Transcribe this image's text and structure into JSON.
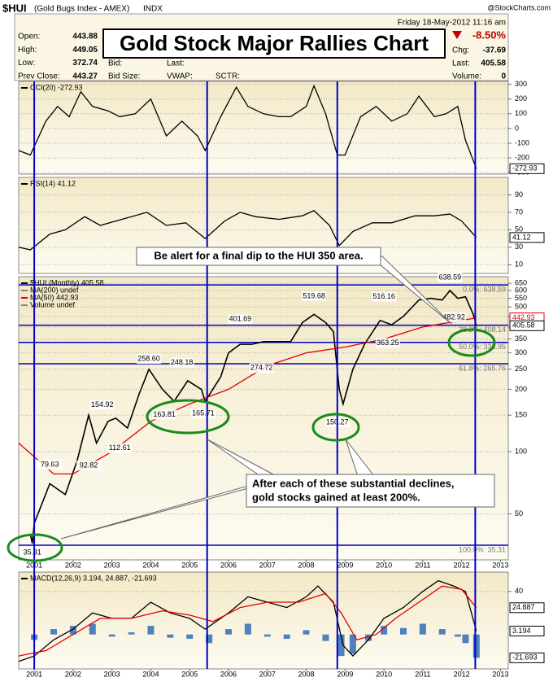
{
  "header": {
    "symbol": "$HUI",
    "name": "(Gold Bugs Index - AMEX)",
    "exchange": "INDX",
    "date": "Friday  18-May-2012  11:16 am",
    "source": "@StockCharts.com"
  },
  "banner": "Gold Stock Major Rallies Chart",
  "info": {
    "rows": [
      {
        "label": "Open:",
        "value": 443.88
      },
      {
        "label": "High:",
        "value": 449.05
      },
      {
        "label": "Low:",
        "value": 372.74
      },
      {
        "label": "Prev Close:",
        "value": 443.27
      }
    ],
    "fields": [
      "Bid:",
      "Last:",
      "Bid Size:",
      "VWAP:",
      "SCTR:"
    ],
    "percent": "-8.50%",
    "chg_label": "Chg:",
    "chg": -37.69,
    "last_label": "Last:",
    "last": 405.58,
    "volume_label": "Volume:",
    "volume": 0
  },
  "callouts": {
    "top": "Be alert for a final dip to the HUI 350 area.",
    "bottom": [
      "After each of these substantial declines,",
      "gold stocks gained at least 200%."
    ]
  },
  "vertical_lines": [
    2001.0,
    2005.45,
    2008.8,
    2012.35
  ],
  "chart_data": [
    {
      "type": "line",
      "panel": "cci",
      "xlim": [
        2000.6,
        2013.2
      ],
      "ylim": [
        -310,
        320
      ],
      "yticks": [
        300,
        200,
        100,
        0,
        -100,
        -200,
        -300
      ],
      "grid": true,
      "series": [
        {
          "name": "CCI(20) -272.93",
          "color": "#000000",
          "x": [
            2000.6,
            2000.9,
            2001.3,
            2001.6,
            2001.9,
            2002.2,
            2002.5,
            2002.9,
            2003.2,
            2003.6,
            2004.0,
            2004.4,
            2004.8,
            2005.2,
            2005.4,
            2005.8,
            2006.2,
            2006.5,
            2006.9,
            2007.3,
            2007.6,
            2008.0,
            2008.2,
            2008.5,
            2008.8,
            2009.0,
            2009.4,
            2009.8,
            2010.2,
            2010.6,
            2010.9,
            2011.3,
            2011.6,
            2011.9,
            2012.1,
            2012.38
          ],
          "values": [
            -150,
            -180,
            50,
            150,
            80,
            250,
            150,
            120,
            80,
            100,
            200,
            -50,
            50,
            -50,
            -150,
            80,
            280,
            150,
            100,
            80,
            80,
            150,
            290,
            100,
            -180,
            -180,
            80,
            150,
            50,
            100,
            220,
            80,
            100,
            150,
            -80,
            -272.93
          ]
        }
      ],
      "last_labels": [
        -272.93
      ]
    },
    {
      "type": "line",
      "panel": "rsi",
      "xlim": [
        2000.6,
        2013.2
      ],
      "ylim": [
        0,
        110
      ],
      "yticks": [
        90,
        70,
        50,
        30,
        10
      ],
      "grid": true,
      "series": [
        {
          "name": "RSI(14) 41.12",
          "color": "#000000",
          "x": [
            2000.6,
            2000.9,
            2001.4,
            2001.8,
            2002.3,
            2002.7,
            2003.1,
            2003.9,
            2004.4,
            2004.9,
            2005.4,
            2005.9,
            2006.3,
            2006.7,
            2007.3,
            2007.9,
            2008.2,
            2008.6,
            2008.85,
            2009.2,
            2009.7,
            2010.2,
            2010.8,
            2011.3,
            2011.7,
            2012.0,
            2012.38
          ],
          "values": [
            30,
            27,
            45,
            50,
            65,
            55,
            60,
            70,
            55,
            58,
            40,
            60,
            70,
            65,
            62,
            66,
            72,
            55,
            32,
            48,
            58,
            58,
            66,
            66,
            68,
            60,
            41.12
          ]
        }
      ],
      "last_labels": [
        41.12
      ]
    },
    {
      "type": "line",
      "panel": "price",
      "log_scale": true,
      "xlim": [
        2000.6,
        2013.2
      ],
      "ylim": [
        30,
        700
      ],
      "yticks": [
        50,
        100,
        150,
        200,
        250,
        300,
        350,
        400,
        450,
        500,
        550,
        600,
        650
      ],
      "xticks": [
        2001,
        2002,
        2003,
        2004,
        2005,
        2006,
        2007,
        2008,
        2009,
        2010,
        2011,
        2012,
        2013
      ],
      "grid": true,
      "series": [
        {
          "name": "$HUI (Monthly) 405.58",
          "color": "#000000",
          "x": [
            2000.9,
            2000.95,
            2001.0,
            2001.4,
            2001.8,
            2002.1,
            2002.4,
            2002.6,
            2002.9,
            2003.1,
            2003.4,
            2003.7,
            2003.95,
            2004.3,
            2004.6,
            2004.95,
            2005.3,
            2005.4,
            2005.8,
            2006.0,
            2006.3,
            2006.6,
            2006.9,
            2007.3,
            2007.6,
            2007.9,
            2008.2,
            2008.5,
            2008.7,
            2008.85,
            2008.95,
            2009.2,
            2009.5,
            2009.9,
            2010.2,
            2010.5,
            2010.9,
            2011.2,
            2011.5,
            2011.7,
            2011.9,
            2012.1,
            2012.3,
            2012.38
          ],
          "values": [
            40,
            36,
            45,
            70,
            62,
            90,
            150,
            110,
            140,
            145,
            130,
            190,
            250,
            200,
            175,
            220,
            200,
            175,
            230,
            300,
            330,
            330,
            340,
            340,
            340,
            420,
            460,
            420,
            380,
            200,
            170,
            250,
            330,
            430,
            410,
            450,
            540,
            550,
            540,
            600,
            550,
            560,
            460,
            405.58
          ]
        },
        {
          "name": "MA(50) 442.93",
          "color": "#e00000",
          "x": [
            2000.6,
            2001.5,
            2002.0,
            2003.0,
            2004.0,
            2005.0,
            2006.0,
            2007.0,
            2008.0,
            2009.0,
            2010.0,
            2011.0,
            2012.38
          ],
          "values": [
            110,
            78,
            78,
            100,
            140,
            170,
            200,
            260,
            300,
            320,
            350,
            400,
            442.93
          ]
        }
      ],
      "extra_legend": [
        "MA(200) undef",
        "Volume undef"
      ],
      "levels": [
        {
          "value": 638.59,
          "label": "0.0%: 638.59"
        },
        {
          "value": 408.14,
          "label": "38.2%: 408.14"
        },
        {
          "value": 336.95,
          "label": "50.0%: 336.95"
        },
        {
          "value": 265.76,
          "label": "61.8%: 265.76"
        },
        {
          "value": 35.31,
          "label": "100.0%: 35.31"
        }
      ],
      "point_labels": [
        {
          "x": 2001.4,
          "value": 79.63,
          "label": "79.63",
          "position": "above"
        },
        {
          "x": 2002.4,
          "value": 92.82,
          "label": "92.82",
          "position": "below"
        },
        {
          "x": 2002.75,
          "value": 154.92,
          "label": "154.92",
          "position": "above"
        },
        {
          "x": 2003.2,
          "value": 112.61,
          "label": "112.61",
          "position": "below"
        },
        {
          "x": 2003.95,
          "value": 258.6,
          "label": "258.60",
          "position": "above"
        },
        {
          "x": 2004.35,
          "value": 163.81,
          "label": "163.81",
          "position": "below"
        },
        {
          "x": 2004.8,
          "value": 248.18,
          "label": "248.18",
          "position": "above"
        },
        {
          "x": 2005.35,
          "value": 165.71,
          "label": "165.71",
          "position": "below"
        },
        {
          "x": 2006.3,
          "value": 401.69,
          "label": "401.69",
          "position": "above"
        },
        {
          "x": 2006.85,
          "value": 274.72,
          "label": "274.72",
          "position": "below"
        },
        {
          "x": 2008.2,
          "value": 519.68,
          "label": "519.68",
          "position": "above"
        },
        {
          "x": 2008.8,
          "value": 150.27,
          "label": "150.27",
          "position": "below"
        },
        {
          "x": 2010.0,
          "value": 516.16,
          "label": "516.16",
          "position": "above"
        },
        {
          "x": 2010.1,
          "value": 363.25,
          "label": "363.25",
          "position": "below"
        },
        {
          "x": 2011.7,
          "value": 638.59,
          "label": "638.59",
          "position": "above"
        },
        {
          "x": 2011.8,
          "value": 482.92,
          "label": "482.92",
          "position": "below"
        },
        {
          "x": 2000.95,
          "value": 35.31,
          "label": "35.31",
          "position": "below"
        }
      ],
      "last_labels": [
        442.93,
        405.58
      ],
      "last_colors": [
        "#e00000",
        "#000000"
      ]
    },
    {
      "type": "line",
      "panel": "macd",
      "label": "MACD(12,26,9) 3.194, 24.887, -21.693",
      "xlim": [
        2000.6,
        2013.2
      ],
      "ylim": [
        -32,
        58
      ],
      "yticks": [
        40
      ],
      "xticks": [
        2001,
        2002,
        2003,
        2004,
        2005,
        2006,
        2007,
        2008,
        2009,
        2010,
        2011,
        2012,
        2013
      ],
      "grid": true,
      "series": [
        {
          "color": "#4f81bd",
          "style": "bar",
          "x": [
            2001.0,
            2001.5,
            2002.0,
            2002.5,
            2003.0,
            2003.5,
            2004.0,
            2004.5,
            2005.0,
            2005.5,
            2006.0,
            2006.5,
            2007.0,
            2007.5,
            2008.0,
            2008.5,
            2008.9,
            2009.2,
            2009.6,
            2010.0,
            2010.5,
            2011.0,
            2011.5,
            2011.9,
            2012.1,
            2012.38
          ],
          "values": [
            -5,
            5,
            8,
            10,
            -2,
            2,
            8,
            -3,
            -4,
            -8,
            5,
            10,
            -2,
            -4,
            4,
            -6,
            -20,
            -18,
            -6,
            8,
            6,
            10,
            5,
            -2,
            -8,
            -21.693
          ]
        },
        {
          "color": "#000000",
          "x": [
            2000.6,
            2001.0,
            2001.5,
            2002.0,
            2002.5,
            2003.0,
            2003.5,
            2004.0,
            2004.5,
            2005.0,
            2005.4,
            2006.0,
            2006.5,
            2007.0,
            2007.5,
            2008.0,
            2008.3,
            2008.7,
            2008.95,
            2009.2,
            2009.6,
            2010.0,
            2010.5,
            2011.0,
            2011.4,
            2011.8,
            2012.1,
            2012.38
          ],
          "values": [
            -25,
            -20,
            -5,
            5,
            20,
            15,
            15,
            30,
            20,
            15,
            5,
            20,
            35,
            30,
            25,
            35,
            45,
            30,
            -10,
            -20,
            -5,
            15,
            25,
            40,
            50,
            45,
            40,
            3.194
          ]
        },
        {
          "color": "#e00000",
          "x": [
            2000.6,
            2001.3,
            2002.0,
            2002.7,
            2003.5,
            2004.3,
            2005.0,
            2005.6,
            2006.3,
            2007.0,
            2007.8,
            2008.5,
            2008.9,
            2009.3,
            2009.8,
            2010.3,
            2010.9,
            2011.5,
            2012.0,
            2012.38
          ],
          "values": [
            -20,
            -15,
            0,
            15,
            15,
            22,
            18,
            12,
            25,
            30,
            30,
            38,
            20,
            -5,
            0,
            15,
            30,
            45,
            42,
            24.887
          ]
        }
      ],
      "last_labels": [
        24.887,
        3.194,
        -21.693
      ]
    }
  ]
}
